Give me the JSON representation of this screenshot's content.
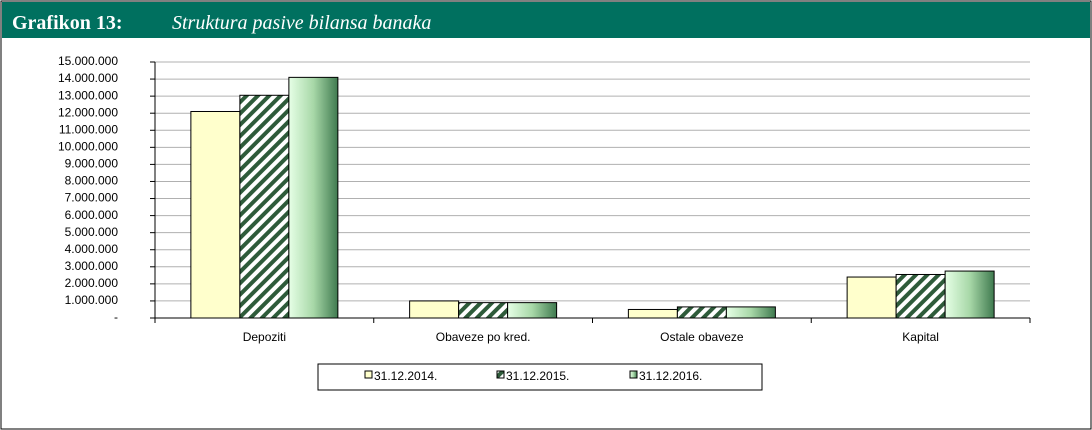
{
  "chart_data": {
    "type": "bar",
    "figure_label": "Grafikon 13:",
    "title": "Struktura pasive bilansa banaka",
    "categories": [
      "Depoziti",
      "Obaveze po kred.",
      "Ostale obaveze",
      "Kapital"
    ],
    "series": [
      {
        "name": "31.12.2014.",
        "color": "#ffffcc",
        "fill_style": "solid",
        "values": [
          12100000,
          1000000,
          500000,
          2400000
        ]
      },
      {
        "name": "31.12.2015.",
        "color": "#2e5b3a",
        "fill_style": "hatch",
        "values": [
          13050000,
          900000,
          650000,
          2550000
        ]
      },
      {
        "name": "31.12.2016.",
        "color": "#3f7a4f",
        "fill_style": "gradient",
        "values": [
          14100000,
          900000,
          650000,
          2750000
        ]
      }
    ],
    "ylim": [
      0,
      15000000
    ],
    "yticks": [
      {
        "value": 0,
        "label": "-"
      },
      {
        "value": 1000000,
        "label": "1.000.000"
      },
      {
        "value": 2000000,
        "label": "2.000.000"
      },
      {
        "value": 3000000,
        "label": "3.000.000"
      },
      {
        "value": 4000000,
        "label": "4.000.000"
      },
      {
        "value": 5000000,
        "label": "5.000.000"
      },
      {
        "value": 6000000,
        "label": "6.000.000"
      },
      {
        "value": 7000000,
        "label": "7.000.000"
      },
      {
        "value": 8000000,
        "label": "8.000.000"
      },
      {
        "value": 9000000,
        "label": "9.000.000"
      },
      {
        "value": 10000000,
        "label": "10.000.000"
      },
      {
        "value": 11000000,
        "label": "11.000.000"
      },
      {
        "value": 12000000,
        "label": "12.000.000"
      },
      {
        "value": 13000000,
        "label": "13.000.000"
      },
      {
        "value": 14000000,
        "label": "14.000.000"
      },
      {
        "value": 15000000,
        "label": "15.000.000"
      }
    ],
    "grid": true,
    "legend": "bottom"
  }
}
